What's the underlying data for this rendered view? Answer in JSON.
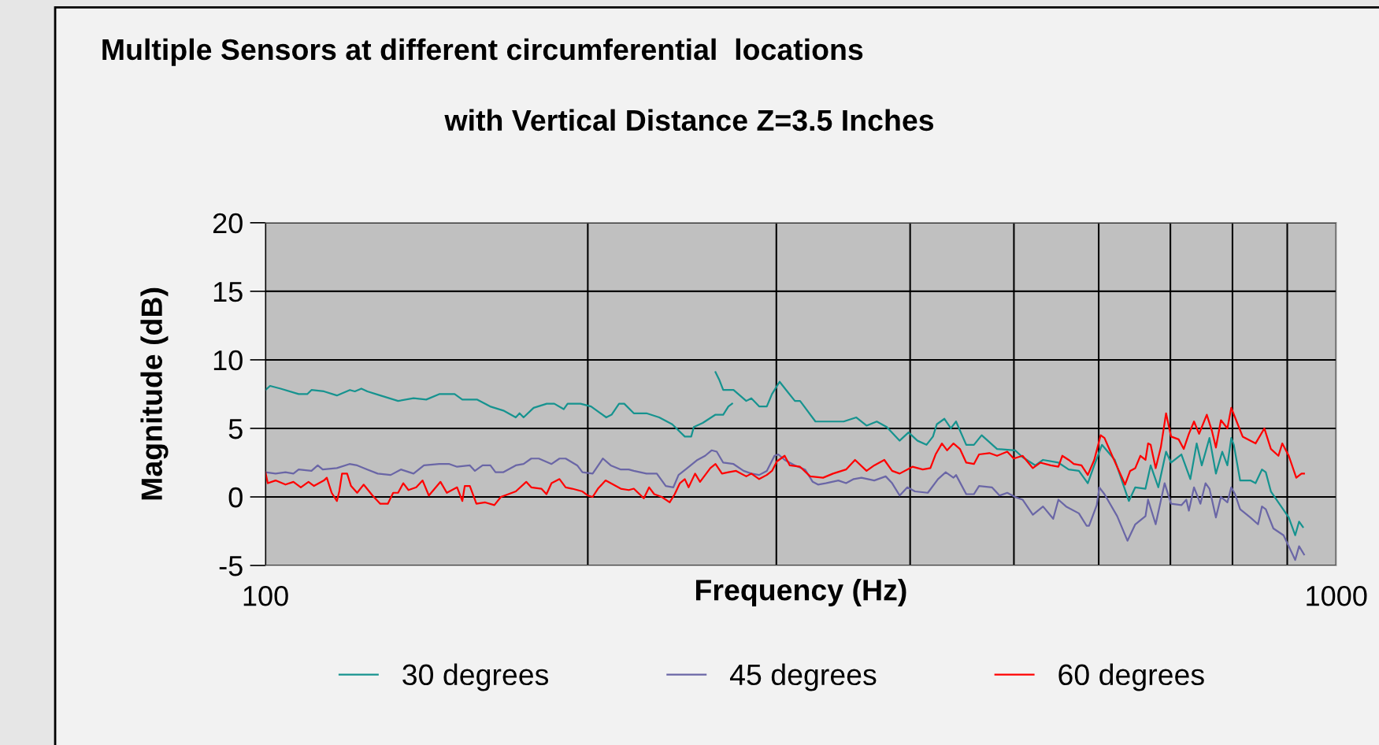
{
  "chart_data": {
    "type": "line",
    "title": "Multiple Sensors at different circumferential  locations",
    "subtitle": "with Vertical Distance Z=3.5 Inches",
    "xlabel": "Frequency (Hz)",
    "ylabel": "Magnitude (dB)",
    "log": "x",
    "xlim": [
      100,
      1000
    ],
    "xticks": [
      100,
      {
        "value": 200,
        "label": null
      },
      {
        "value": 300,
        "label": null
      },
      {
        "value": 400,
        "label": null
      },
      {
        "value": 500,
        "label": null
      },
      {
        "value": 600,
        "label": null
      },
      {
        "value": 700,
        "label": null
      },
      {
        "value": 800,
        "label": null
      },
      {
        "value": 900,
        "label": null
      },
      1000
    ],
    "ylim": [
      -5,
      20
    ],
    "yticks": [
      -5,
      0,
      5,
      10,
      15,
      20
    ],
    "grid": true,
    "legend": "bottom",
    "marker": "none",
    "line_style": "solid",
    "series": [
      {
        "name": "30 degrees",
        "color": "#16938f",
        "x": [
          100,
          101,
          103.3,
          107.4,
          109.4,
          110.4,
          113.4,
          116.6,
          119.9,
          121.2,
          122.9,
          124.5,
          128.0,
          133.0,
          137.5,
          141.3,
          145.3,
          150.2,
          152.7,
          157.7,
          162.1,
          166.8,
          171.3,
          172.7,
          174.2,
          178.0,
          183.1,
          186.1,
          189.9,
          191.5,
          196.9,
          201.4,
          208.1,
          210.5,
          213.9,
          216.3,
          220.8,
          226.9,
          233.2,
          239.8,
          246.4,
          249.8,
          251.2,
          256.1,
          263.2,
          267.6,
          270.6,
          272.8
        ],
        "values": [
          7.8,
          8.1,
          7.9,
          7.5,
          7.5,
          7.8,
          7.7,
          7.4,
          7.8,
          7.7,
          7.9,
          7.7,
          7.4,
          7.0,
          7.2,
          7.1,
          7.5,
          7.5,
          7.1,
          7.1,
          6.6,
          6.3,
          5.8,
          6.1,
          5.8,
          6.5,
          6.8,
          6.8,
          6.4,
          6.8,
          6.8,
          6.6,
          5.8,
          6.0,
          6.8,
          6.8,
          6.1,
          6.1,
          5.8,
          5.3,
          4.4,
          4.4,
          5.1,
          5.4,
          6.0,
          6.0,
          6.6,
          6.8
        ]
      },
      {
        "color": "#16938f",
        "x": [
          263.2,
          265.5,
          267.6,
          273.6,
          281.2,
          284.3,
          289.1,
          293.9,
          297.2,
          302.1,
          307.1,
          312.2,
          315.7,
          326.3,
          333.6,
          346.7,
          356.3,
          364.2,
          372.3,
          380.4,
          391.0,
          398.6,
          406.4,
          414.3,
          420.1,
          423.6,
          430.6,
          436.6,
          441.5,
          451.3,
          458.8,
          466.5,
          482.2,
          501.2,
          509.4,
          523.6,
          532.3,
          550.2,
          562.5,
          575.0,
          586.1,
          594.3,
          604.2,
          621.1,
          640.2,
          649.1,
          663.5,
          670.9,
          682.1,
          693.5,
          701.1,
          716.8,
          730.7,
          740.7,
          748.9,
          761.4,
          772.0,
          782.6,
          791.3,
          797.9,
          802.3,
          813.3,
          831.4,
          840.7,
          852.3,
          859.4,
          868.9,
          902.9,
          915.5,
          923.2,
          930.9
        ],
        "values": [
          9.1,
          8.5,
          7.8,
          7.8,
          7.0,
          7.2,
          6.6,
          6.6,
          7.5,
          8.4,
          7.7,
          7.0,
          7.0,
          5.5,
          5.5,
          5.5,
          5.8,
          5.2,
          5.5,
          5.1,
          4.1,
          4.7,
          4.1,
          3.8,
          4.4,
          5.3,
          5.7,
          5.0,
          5.5,
          3.8,
          3.8,
          4.5,
          3.5,
          3.4,
          2.9,
          2.3,
          2.7,
          2.5,
          2.0,
          1.9,
          1.0,
          2.3,
          3.8,
          2.7,
          -0.3,
          0.7,
          0.6,
          2.3,
          0.7,
          3.3,
          2.5,
          3.1,
          1.3,
          3.9,
          2.3,
          4.3,
          1.7,
          3.3,
          2.3,
          4.3,
          3.8,
          1.2,
          1.2,
          1.0,
          2.0,
          1.8,
          0.4,
          -1.5,
          -2.8,
          -1.8,
          -2.2
        ]
      },
      {
        "name": "45 degrees",
        "color": "#6a66a6",
        "x": [
          100,
          102.2,
          104.4,
          106.2,
          107.4,
          110.4,
          111.9,
          113.1,
          116.6,
          119.8,
          121.8,
          124.5,
          127.3,
          130.9,
          133.8,
          137.5,
          140.6,
          145.3,
          148.5,
          151.0,
          155.2,
          156.9,
          159.5,
          162.2,
          164.0,
          166.7,
          171.3,
          174.2,
          177.1,
          180.0,
          185.0,
          188.2,
          190.7,
          195.5,
          197.7,
          202.1,
          206.6,
          210.1,
          214.7,
          218.4,
          220.8,
          226.9,
          232.0,
          236.5,
          240.4,
          243.1,
          247.7,
          253.2,
          257.4,
          261.0,
          263.9,
          267.6,
          273.6,
          279.6,
          284.3,
          289.1,
          293.9,
          298.8,
          301.3,
          305.4,
          312.2,
          319.1,
          324.4,
          328.1,
          333.6,
          342.8,
          348.5,
          354.3,
          360.2,
          370.3,
          379.5,
          384.8,
          391.1,
          397.6,
          404.2,
          415.5,
          424.7,
          431.8,
          439.1,
          441.5,
          451.3,
          458.8,
          463.9,
          476.9,
          484.8,
          492.9,
          501.2,
          509.4,
          520.8,
          532.3,
          544.1,
          550.2,
          559.4,
          575.0,
          584.5,
          587.7,
          597.5,
          600.8,
          607.5,
          624.3,
          638.3,
          649.1,
          663.5,
          667.2,
          678.2,
          691.4,
          701.1,
          716.8,
          724.4,
          728.4,
          736.5,
          746.7,
          755.0,
          761.4,
          772.0,
          780.4,
          791.3,
          797.9,
          804.4,
          813.3,
          831.4,
          845.2,
          852.3,
          859.4,
          873.5,
          892.9,
          902.9,
          915.5,
          923.2,
          933.1
        ],
        "values": [
          1.8,
          1.7,
          1.8,
          1.7,
          2.0,
          1.9,
          2.3,
          2.0,
          2.1,
          2.4,
          2.3,
          2.0,
          1.7,
          1.6,
          2.0,
          1.7,
          2.3,
          2.4,
          2.4,
          2.2,
          2.3,
          1.9,
          2.3,
          2.3,
          1.8,
          1.8,
          2.3,
          2.4,
          2.8,
          2.8,
          2.4,
          2.8,
          2.8,
          2.3,
          1.8,
          1.7,
          2.8,
          2.3,
          2.0,
          2.0,
          1.9,
          1.7,
          1.7,
          0.8,
          0.7,
          1.6,
          2.1,
          2.7,
          3.0,
          3.4,
          3.3,
          2.5,
          2.4,
          1.9,
          1.7,
          1.6,
          1.9,
          3.0,
          3.1,
          2.7,
          2.3,
          2.0,
          1.1,
          0.9,
          1.0,
          1.2,
          1.0,
          1.3,
          1.4,
          1.2,
          1.5,
          1.0,
          0.1,
          0.7,
          0.4,
          0.3,
          1.3,
          1.8,
          1.4,
          1.6,
          0.2,
          0.2,
          0.8,
          0.7,
          0.1,
          0.3,
          0.0,
          -0.2,
          -1.3,
          -0.7,
          -1.6,
          -0.2,
          -0.7,
          -1.2,
          -2.1,
          -2.1,
          -0.6,
          0.7,
          0.2,
          -1.4,
          -3.2,
          -2.0,
          -1.4,
          -0.2,
          -2.0,
          1.0,
          -0.5,
          -0.6,
          -0.2,
          -1.0,
          0.7,
          -0.5,
          1.0,
          0.6,
          -1.5,
          0.0,
          -0.4,
          0.7,
          0.2,
          -0.9,
          -1.5,
          -2.0,
          -0.7,
          -0.9,
          -2.3,
          -2.8,
          -3.6,
          -4.6,
          -3.6,
          -4.2
        ]
      },
      {
        "name": "60 degrees",
        "color": "#ff0000",
        "x": [
          100,
          100.5,
          102.2,
          104.4,
          106.2,
          107.9,
          109.7,
          111.0,
          113.4,
          114.1,
          115.3,
          116.6,
          117.2,
          117.9,
          119.2,
          120.2,
          121.8,
          123.5,
          125.9,
          128.0,
          130.1,
          131.6,
          133.0,
          134.5,
          136.0,
          138.3,
          140.2,
          142.1,
          145.7,
          147.7,
          151.0,
          152.7,
          153.5,
          155.2,
          157.4,
          160.4,
          163.6,
          165.9,
          168.6,
          171.3,
          175.2,
          177.1,
          181.0,
          183.0,
          185.0,
          188.2,
          190.7,
          193.4,
          197.7,
          200.0,
          202.1,
          204.4,
          207.8,
          210.1,
          214.7,
          218.4,
          220.8,
          225.6,
          228.2,
          230.7,
          234.5,
          238.5,
          241.1,
          243.8,
          246.4,
          248.4,
          251.9,
          254.6,
          260.3,
          263.2,
          266.9,
          270.6,
          275.1,
          281.2,
          284.3,
          289.1,
          293.9,
          297.2,
          300.4,
          305.4,
          308.8,
          315.7,
          322.6,
          331.7,
          338.9,
          348.5,
          355.3,
          364.2,
          370.3,
          378.4,
          384.8,
          391.1,
          402.0,
          411.0,
          417.8,
          422.5,
          428.3,
          433.1,
          439.1,
          445.2,
          451.3,
          458.8,
          463.9,
          474.3,
          482.2,
          492.9,
          499.8,
          509.4,
          520.8,
          529.4,
          541.2,
          550.2,
          554.8,
          562.5,
          568.7,
          578.2,
          586.1,
          594.3,
          602.5,
          607.5,
          617.7,
          635.0,
          642.0,
          649.1,
          656.3,
          663.5,
          667.2,
          670.9,
          678.2,
          685.7,
          693.5,
          701.1,
          712.5,
          720.4,
          728.4,
          736.5,
          744.6,
          757.0,
          765.5,
          772.0,
          780.4,
          791.3,
          797.9,
          804.4,
          817.7,
          840.7,
          856.7,
          868.9,
          883.1,
          890.4,
          902.9,
          917.6,
          928.0,
          933.1
        ],
        "values": [
          1.8,
          1.0,
          1.2,
          0.9,
          1.1,
          0.7,
          1.1,
          0.8,
          1.2,
          1.4,
          0.3,
          -0.3,
          0.4,
          1.7,
          1.7,
          0.8,
          0.3,
          0.9,
          0.1,
          -0.5,
          -0.5,
          0.3,
          0.3,
          1.0,
          0.5,
          0.7,
          1.2,
          0.1,
          1.1,
          0.3,
          0.7,
          -0.3,
          0.8,
          0.8,
          -0.5,
          -0.4,
          -0.6,
          0.0,
          0.2,
          0.4,
          1.1,
          0.7,
          0.6,
          0.2,
          1.0,
          1.3,
          0.7,
          0.6,
          0.4,
          0.1,
          0.0,
          0.6,
          1.2,
          1.0,
          0.6,
          0.5,
          0.6,
          -0.1,
          0.7,
          0.2,
          0.0,
          -0.4,
          0.2,
          1.0,
          1.3,
          0.7,
          1.7,
          1.1,
          2.1,
          2.4,
          1.7,
          1.8,
          1.9,
          1.5,
          1.7,
          1.3,
          1.6,
          1.9,
          2.6,
          3.0,
          2.3,
          2.2,
          1.5,
          1.4,
          1.7,
          2.0,
          2.7,
          1.9,
          2.3,
          2.7,
          1.9,
          1.7,
          2.2,
          2.0,
          2.1,
          3.1,
          3.9,
          3.4,
          3.9,
          3.5,
          2.5,
          2.4,
          3.1,
          3.2,
          3.0,
          3.3,
          2.8,
          3.0,
          2.1,
          2.5,
          2.3,
          2.2,
          3.0,
          2.7,
          2.4,
          2.3,
          1.6,
          2.7,
          4.5,
          4.3,
          3.0,
          0.9,
          1.9,
          2.1,
          3.0,
          2.7,
          3.9,
          3.8,
          2.1,
          3.6,
          6.1,
          4.4,
          4.2,
          3.5,
          4.6,
          5.5,
          4.6,
          6.0,
          4.8,
          3.6,
          5.6,
          5.0,
          6.5,
          5.8,
          4.4,
          3.9,
          5.0,
          3.5,
          3.0,
          3.9,
          3.0,
          1.4,
          1.7,
          1.7
        ]
      }
    ]
  }
}
